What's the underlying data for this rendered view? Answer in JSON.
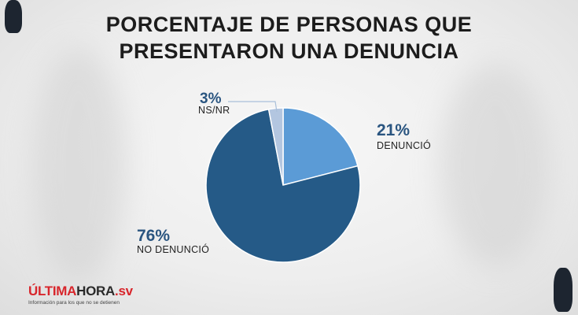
{
  "title_lines": [
    "PORCENTAJE DE PERSONAS QUE",
    "PRESENTARON UNA DENUNCIA"
  ],
  "chart_data": {
    "type": "pie",
    "title": "PORCENTAJE DE PERSONAS QUE PRESENTARON UNA DENUNCIA",
    "slices": [
      {
        "label": "DENUNCIÓ",
        "value": 21,
        "value_label": "21%",
        "color": "#5b9bd6"
      },
      {
        "label": "NO DENUNCIÓ",
        "value": 76,
        "value_label": "76%",
        "color": "#255a87"
      },
      {
        "label": "NS/NR",
        "value": 3,
        "value_label": "3%",
        "color": "#b3c6e0"
      }
    ]
  },
  "logo": {
    "brand_red": "ÚLTIMA",
    "brand_dark": "HORA",
    "brand_suffix": ".sv",
    "tagline": "Información para los que no se detienen"
  },
  "colors": {
    "title": "#1c1c1c",
    "percent_text": "#2a5580",
    "leader_line": "#a9bfd9",
    "brand_red": "#d8262c"
  }
}
